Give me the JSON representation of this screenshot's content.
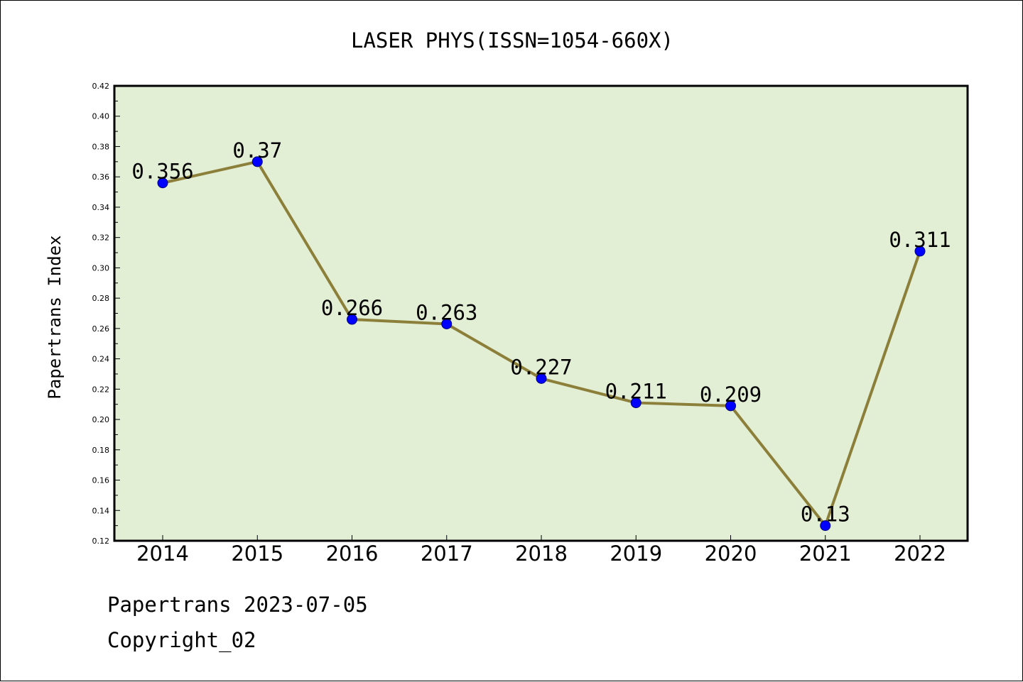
{
  "footer": {
    "source": "Papertrans 2023-07-05",
    "copyright": "Copyright_02"
  },
  "colors": {
    "plot_background": "#e2efd5",
    "line": "#8c7f3a",
    "marker": "#0000ff",
    "marker_edge": "#00007a"
  },
  "chart_data": {
    "type": "line",
    "title": "LASER PHYS(ISSN=1054-660X)",
    "xlabel": "",
    "ylabel": "Papertrans Index",
    "categories": [
      "2014",
      "2015",
      "2016",
      "2017",
      "2018",
      "2019",
      "2020",
      "2021",
      "2022"
    ],
    "values": [
      0.356,
      0.37,
      0.266,
      0.263,
      0.227,
      0.211,
      0.209,
      0.13,
      0.311
    ],
    "data_labels": [
      "0.356",
      "0.37",
      "0.266",
      "0.263",
      "0.227",
      "0.211",
      "0.209",
      "0.13",
      "0.311"
    ],
    "ylim": [
      0.12,
      0.42
    ],
    "yticks": [
      "0.12",
      "0.14",
      "0.16",
      "0.18",
      "0.20",
      "0.22",
      "0.24",
      "0.26",
      "0.28",
      "0.30",
      "0.32",
      "0.34",
      "0.36",
      "0.38",
      "0.40",
      "0.42"
    ],
    "grid": false,
    "legend": "none",
    "marker": "circle"
  }
}
